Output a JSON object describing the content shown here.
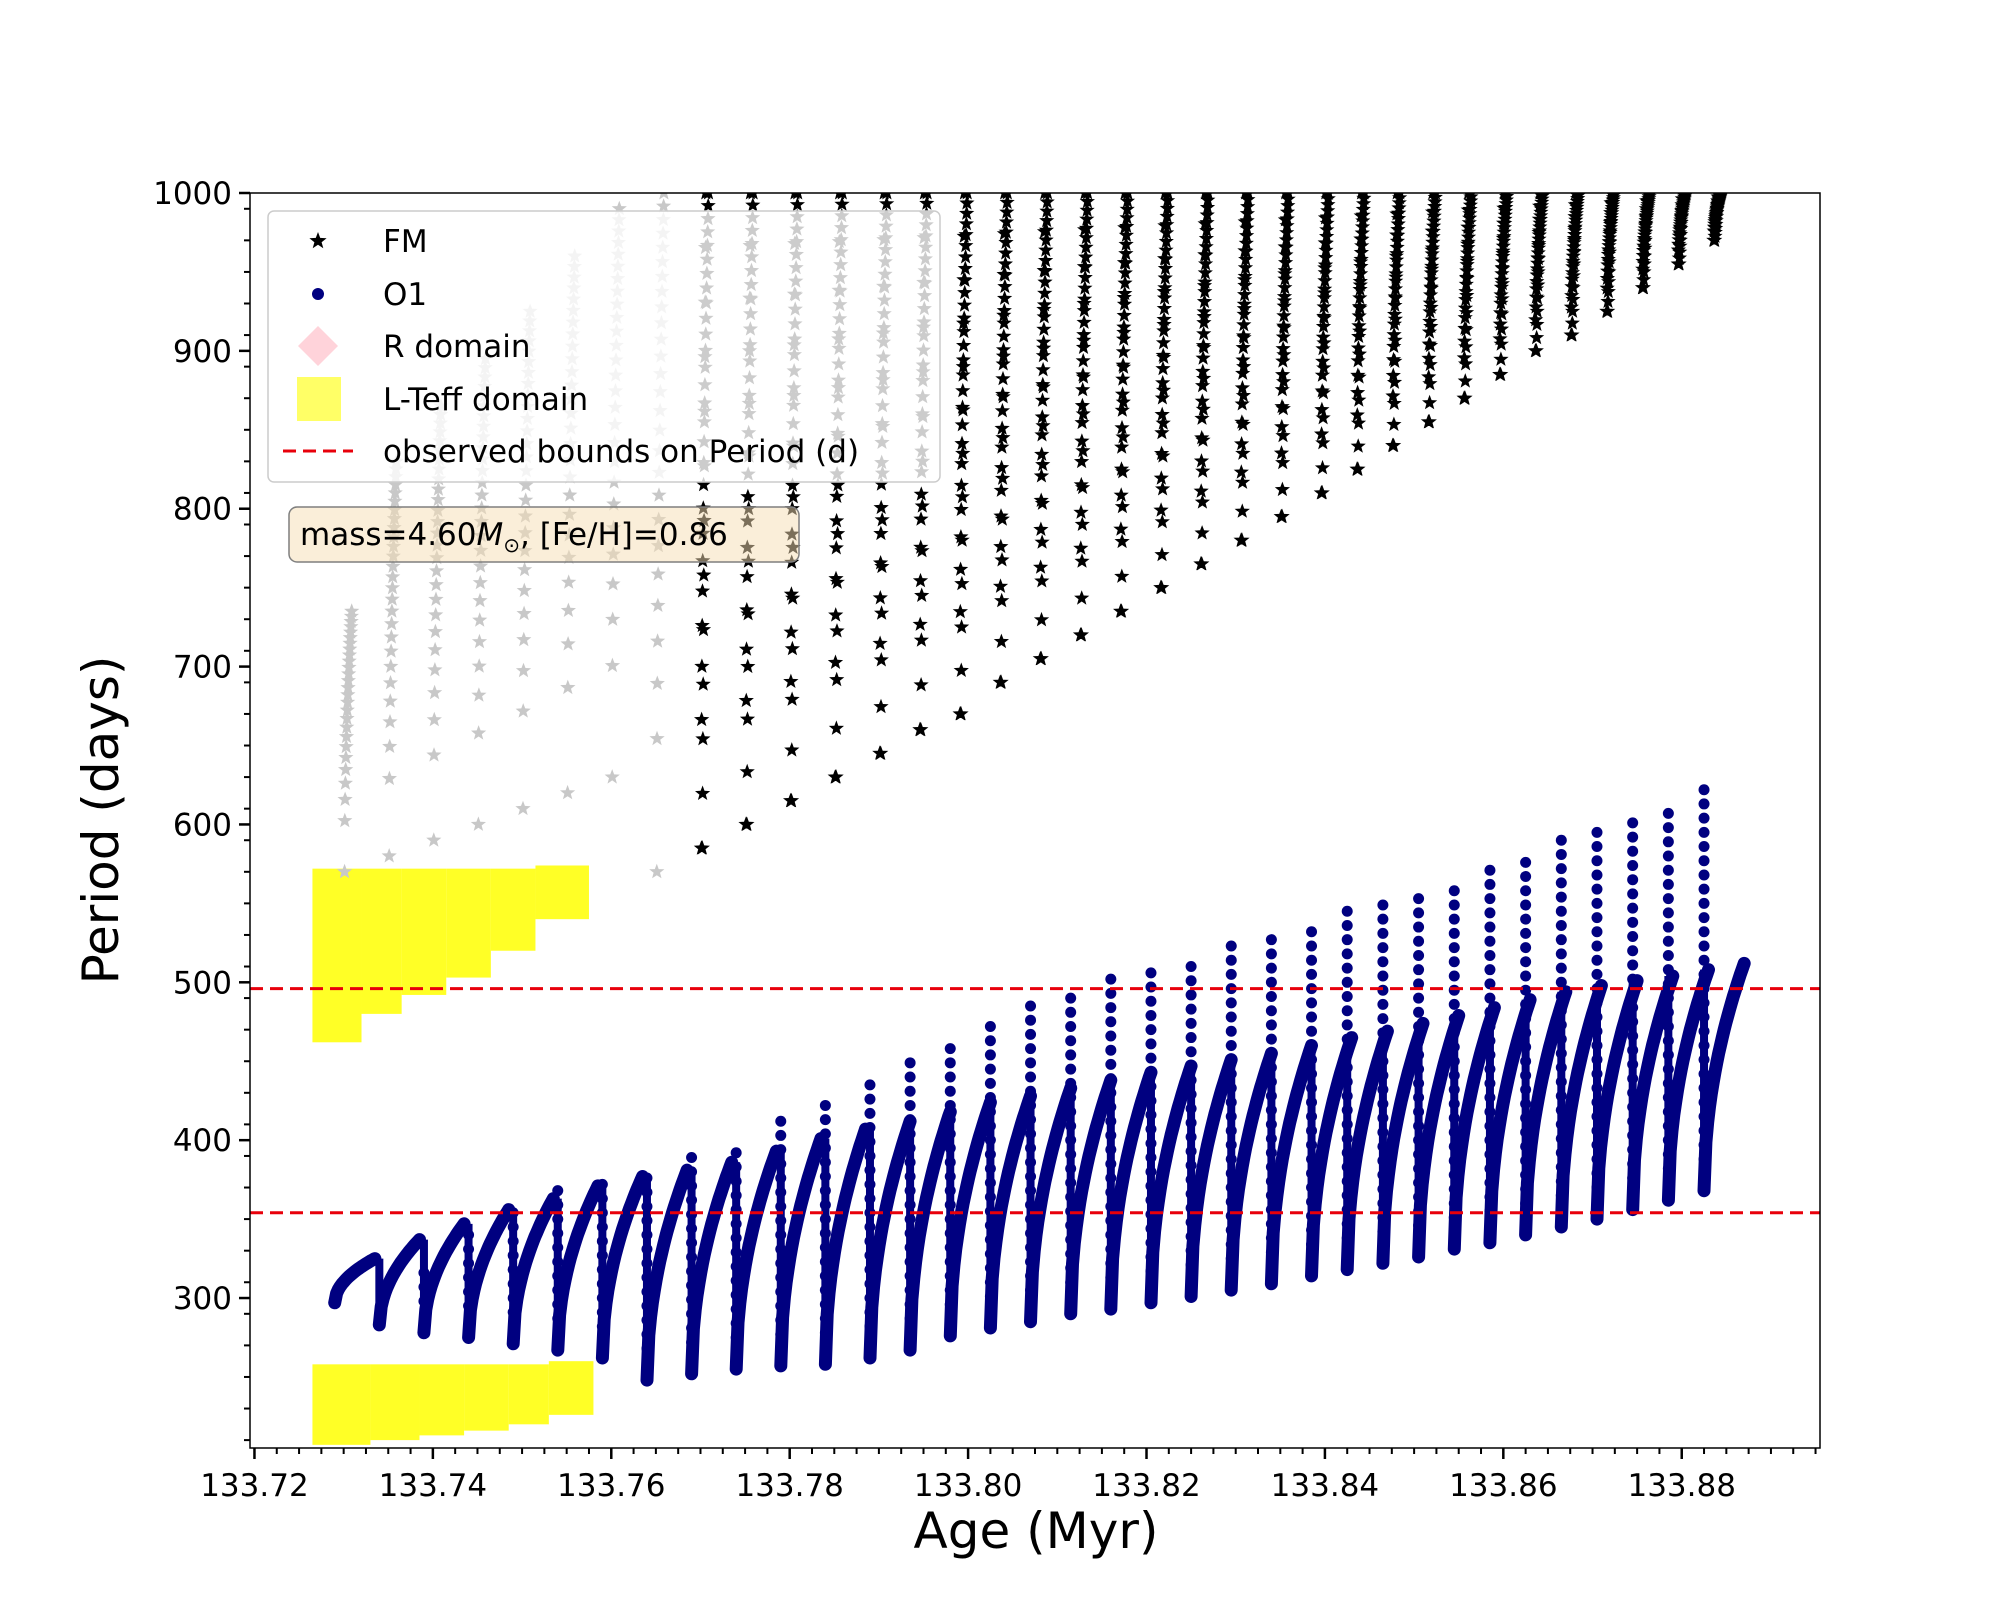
{
  "chart_data": {
    "type": "scatter",
    "xlabel": "Age (Myr)",
    "ylabel": "Period (days)",
    "xlim": [
      133.7195,
      133.8955
    ],
    "ylim": [
      205,
      1000
    ],
    "x_ticks": [
      133.72,
      133.74,
      133.76,
      133.78,
      133.8,
      133.82,
      133.84,
      133.86,
      133.88
    ],
    "x_tick_labels": [
      "133.72",
      "133.74",
      "133.76",
      "133.78",
      "133.80",
      "133.82",
      "133.84",
      "133.86",
      "133.88"
    ],
    "y_ticks": [
      300,
      400,
      500,
      600,
      700,
      800,
      900,
      1000
    ],
    "y_tick_labels": [
      "300",
      "400",
      "500",
      "600",
      "700",
      "800",
      "900",
      "1000"
    ],
    "grid": false,
    "legend_position": "top-left",
    "legend": [
      {
        "label": "FM",
        "marker": "star",
        "color": "#000000"
      },
      {
        "label": "O1",
        "marker": "circle",
        "color": "#000080"
      },
      {
        "label": "R domain",
        "marker": "diamond",
        "color": "#ffc0cb"
      },
      {
        "label": "L-Teff domain",
        "marker": "square",
        "color": "#ffff00"
      },
      {
        "label": "observed bounds on Period (d)",
        "marker": "dashed-line",
        "color": "#e8000b"
      }
    ],
    "annotation": {
      "prefix": "mass=4.60",
      "symbol": "M",
      "subscript": "⊙",
      "suffix": ", [Fe/H]=0.86"
    },
    "observed_bounds": [
      354,
      496
    ],
    "pulse_start_ages": [
      133.729,
      133.734,
      133.739,
      133.744,
      133.749,
      133.754,
      133.759,
      133.764,
      133.769,
      133.774,
      133.779,
      133.784,
      133.789,
      133.7935,
      133.798,
      133.8025,
      133.807,
      133.8115,
      133.816,
      133.8205,
      133.825,
      133.8295,
      133.834,
      133.8385,
      133.8425,
      133.8465,
      133.8505,
      133.8545,
      133.8585,
      133.8625,
      133.8665,
      133.8705,
      133.8745,
      133.8785,
      133.8825
    ],
    "pulse_length": 0.0045,
    "o1_min_period": [
      297,
      283,
      278,
      275,
      271,
      267,
      262,
      248,
      252,
      255,
      257,
      258,
      262,
      267,
      276,
      281,
      285,
      290,
      293,
      297,
      301,
      305,
      309,
      314,
      318,
      322,
      326,
      331,
      335,
      340,
      345,
      350,
      356,
      362,
      368
    ],
    "o1_max_period": [
      325,
      337,
      347,
      356,
      363,
      371,
      377,
      381,
      386,
      393,
      401,
      407,
      412,
      418,
      424,
      428,
      433,
      438,
      443,
      447,
      451,
      455,
      460,
      465,
      469,
      474,
      479,
      484,
      489,
      494,
      498,
      501,
      504,
      508,
      512
    ],
    "o1_spike_top": [
      300,
      302,
      320,
      345,
      360,
      368,
      374,
      381,
      397,
      400,
      412,
      426,
      438,
      452,
      465,
      476,
      486,
      497,
      505,
      511,
      518,
      524,
      533,
      540,
      545,
      551,
      557,
      565,
      574,
      580,
      590,
      598,
      605,
      612,
      627
    ],
    "fm_min_period": [
      570,
      580,
      590,
      600,
      610,
      620,
      630,
      570,
      585,
      600,
      615,
      630,
      645,
      660,
      670,
      690,
      705,
      720,
      735,
      750,
      765,
      780,
      795,
      810,
      825,
      840,
      855,
      870,
      885,
      900,
      910,
      925,
      940,
      955,
      970
    ],
    "fm_max_period": [
      735,
      830,
      865,
      895,
      925,
      960,
      990,
      1000,
      1000,
      1000,
      1000,
      1000,
      1000,
      1000,
      1000,
      1000,
      1000,
      1000,
      1000,
      1000,
      1000,
      1000,
      1000,
      1000,
      1000,
      1000,
      1000,
      1000,
      1000,
      1000,
      1000,
      1000,
      1000,
      1000,
      1000
    ],
    "lteff_upper_boxes": [
      {
        "x0": 133.7265,
        "x1": 133.732,
        "y0": 462,
        "y1": 572
      },
      {
        "x0": 133.732,
        "x1": 133.7365,
        "y0": 480,
        "y1": 572
      },
      {
        "x0": 133.7365,
        "x1": 133.7415,
        "y0": 492,
        "y1": 572
      },
      {
        "x0": 133.7415,
        "x1": 133.7465,
        "y0": 503,
        "y1": 572
      },
      {
        "x0": 133.7465,
        "x1": 133.7515,
        "y0": 520,
        "y1": 572
      },
      {
        "x0": 133.7515,
        "x1": 133.7575,
        "y0": 540,
        "y1": 574
      }
    ],
    "lteff_lower_boxes": [
      {
        "x0": 133.7265,
        "x1": 133.733,
        "y0": 207,
        "y1": 258
      },
      {
        "x0": 133.733,
        "x1": 133.7385,
        "y0": 210,
        "y1": 258
      },
      {
        "x0": 133.7385,
        "x1": 133.7435,
        "y0": 213,
        "y1": 258
      },
      {
        "x0": 133.7435,
        "x1": 133.7485,
        "y0": 216,
        "y1": 258
      },
      {
        "x0": 133.7485,
        "x1": 133.753,
        "y0": 220,
        "y1": 258
      },
      {
        "x0": 133.753,
        "x1": 133.758,
        "y0": 226,
        "y1": 260
      }
    ],
    "grey_pulse_count": 8,
    "colors": {
      "fm": "#000000",
      "fm_faded": "#c8c8c8",
      "o1": "#000080",
      "lteff": "#ffff00",
      "rdomain": "#ffc0cb",
      "bounds": "#e8000b",
      "legend_border": "#cccccc",
      "annotation_bg": "#f5deb3",
      "annotation_border": "#7f7f7f"
    }
  }
}
